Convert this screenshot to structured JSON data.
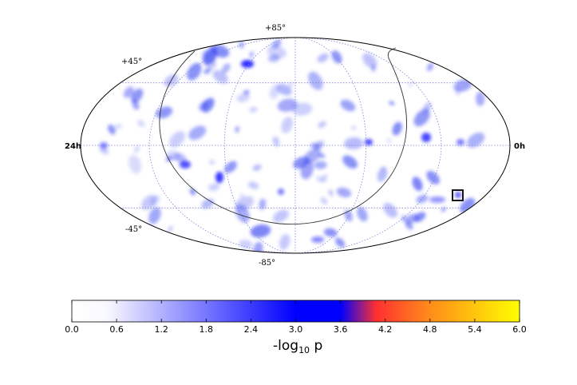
{
  "chart_data": {
    "type": "heatmap",
    "projection": "mollweide",
    "coordinate_labels": {
      "lat_top": "+85°",
      "lat_upper": "+45°",
      "lat_lower": "-45°",
      "lat_bottom": "-85°",
      "ra_left": "24h",
      "ra_right": "0h"
    },
    "grid": true,
    "colorbar": {
      "label_main": "-log",
      "label_sub": "10",
      "label_end": " p",
      "ticks": [
        "0.0",
        "0.6",
        "1.2",
        "1.8",
        "2.4",
        "3.0",
        "3.6",
        "4.2",
        "4.8",
        "5.4",
        "6.0"
      ],
      "range": [
        0.0,
        6.0
      ],
      "colors": [
        "#ffffff",
        "#0000ff",
        "#ff3030",
        "#ffff00"
      ]
    },
    "marker": {
      "shape": "square",
      "ra_hours": 1.5,
      "dec_deg": -27
    },
    "colors": {
      "map_fill": "#ffffff",
      "grid": "#8080dd",
      "spot": "#2a38f0"
    }
  }
}
